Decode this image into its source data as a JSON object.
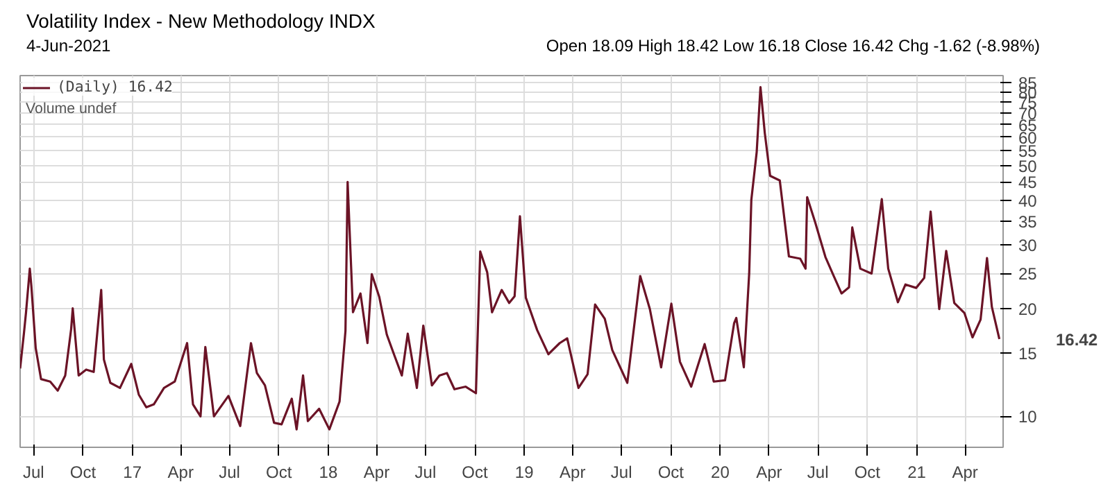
{
  "chart_data": {
    "type": "line",
    "title": "Volatility Index - New Methodology INDX",
    "subtitle": "4-Jun-2021",
    "annotations": [
      "Open 18.09 High 18.42 Low 16.18 Close 16.42 Chg -1.62 (-8.98%)",
      "Volume undef",
      "16.42"
    ],
    "x": [
      "2016-06-06",
      "2016-06-13",
      "2016-06-17",
      "2016-06-24",
      "2016-06-27",
      "2016-07-05",
      "2016-07-15",
      "2016-08-01",
      "2016-08-15",
      "2016-08-29",
      "2016-09-09",
      "2016-09-12",
      "2016-09-23",
      "2016-10-07",
      "2016-10-21",
      "2016-11-04",
      "2016-11-09",
      "2016-11-21",
      "2016-12-09",
      "2016-12-30",
      "2017-01-13",
      "2017-01-27",
      "2017-02-10",
      "2017-03-01",
      "2017-03-21",
      "2017-04-13",
      "2017-04-24",
      "2017-05-08",
      "2017-05-17",
      "2017-06-02",
      "2017-06-29",
      "2017-07-21",
      "2017-08-10",
      "2017-08-21",
      "2017-09-05",
      "2017-09-22",
      "2017-10-06",
      "2017-10-25",
      "2017-11-03",
      "2017-11-15",
      "2017-11-24",
      "2017-12-15",
      "2018-01-03",
      "2018-01-22",
      "2018-02-02",
      "2018-02-06",
      "2018-02-16",
      "2018-03-02",
      "2018-03-15",
      "2018-03-23",
      "2018-04-06",
      "2018-04-20",
      "2018-05-04",
      "2018-05-18",
      "2018-05-29",
      "2018-06-15",
      "2018-06-27",
      "2018-07-13",
      "2018-07-27",
      "2018-08-10",
      "2018-08-24",
      "2018-09-14",
      "2018-10-03",
      "2018-10-11",
      "2018-10-24",
      "2018-11-02",
      "2018-11-20",
      "2018-12-04",
      "2018-12-14",
      "2018-12-24",
      "2019-01-04",
      "2019-01-25",
      "2019-02-15",
      "2019-03-08",
      "2019-03-22",
      "2019-04-12",
      "2019-04-29",
      "2019-05-13",
      "2019-05-31",
      "2019-06-14",
      "2019-07-12",
      "2019-08-05",
      "2019-08-23",
      "2019-09-13",
      "2019-10-02",
      "2019-10-18",
      "2019-11-08",
      "2019-12-03",
      "2019-12-20",
      "2020-01-10",
      "2020-01-27",
      "2020-01-31",
      "2020-02-14",
      "2020-02-24",
      "2020-02-28",
      "2020-03-09",
      "2020-03-16",
      "2020-03-24",
      "2020-04-03",
      "2020-04-21",
      "2020-05-08",
      "2020-05-29",
      "2020-06-08",
      "2020-06-11",
      "2020-06-26",
      "2020-07-15",
      "2020-07-31",
      "2020-08-14",
      "2020-08-28",
      "2020-09-03",
      "2020-09-18",
      "2020-10-09",
      "2020-10-28",
      "2020-11-09",
      "2020-11-27",
      "2020-12-11",
      "2020-12-31",
      "2021-01-15",
      "2021-01-27",
      "2021-02-12",
      "2021-02-25",
      "2021-03-12",
      "2021-03-31",
      "2021-04-15",
      "2021-04-30",
      "2021-05-12",
      "2021-05-21",
      "2021-06-04"
    ],
    "series": [
      {
        "name": "(Daily) 16.42",
        "color": "#6b1326",
        "values": [
          13.6,
          17,
          19.5,
          25.8,
          23,
          15.5,
          12.7,
          12.5,
          11.8,
          13,
          17.5,
          20,
          13,
          13.5,
          13.3,
          22.5,
          14.4,
          12.4,
          12,
          14,
          11.5,
          10.6,
          10.8,
          12,
          12.5,
          16,
          10.8,
          10,
          15.6,
          10,
          11.4,
          9.4,
          16,
          13.2,
          12.2,
          9.6,
          9.5,
          11.2,
          9.2,
          13,
          9.7,
          10.5,
          9.2,
          11,
          17.3,
          45,
          19.5,
          22,
          16,
          24.9,
          21.5,
          16.9,
          14.8,
          13,
          17,
          12,
          17.9,
          12.2,
          13,
          13.2,
          11.9,
          12.1,
          11.6,
          28.8,
          25.2,
          19.5,
          22.5,
          20.7,
          21.6,
          36.1,
          21.4,
          17.4,
          14.9,
          16,
          16.5,
          12,
          13.1,
          20.5,
          18.7,
          15.3,
          12.4,
          24.6,
          19.9,
          13.7,
          20.6,
          14.2,
          12.1,
          15.9,
          12.5,
          12.6,
          18.2,
          18.8,
          13.7,
          25,
          40.1,
          54.5,
          82.7,
          61.7,
          46.8,
          45.4,
          27.9,
          27.5,
          25.8,
          40.8,
          34.7,
          27.8,
          24.5,
          22,
          22.9,
          33.6,
          25.8,
          25,
          40.3,
          25.8,
          20.8,
          23.3,
          22.8,
          24.3,
          37.2,
          19.9,
          28.9,
          20.7,
          19.4,
          16.6,
          18.6,
          27.6,
          20.2,
          16.42
        ]
      }
    ],
    "xlim": [
      "2016-06-06",
      "2021-06-11"
    ],
    "xticks": [
      {
        "value": "2016-07-01",
        "label": "Jul"
      },
      {
        "value": "2016-10-01",
        "label": "Oct"
      },
      {
        "value": "2017-01-01",
        "label": "17"
      },
      {
        "value": "2017-04-01",
        "label": "Apr"
      },
      {
        "value": "2017-07-01",
        "label": "Jul"
      },
      {
        "value": "2017-10-01",
        "label": "Oct"
      },
      {
        "value": "2018-01-01",
        "label": "18"
      },
      {
        "value": "2018-04-01",
        "label": "Apr"
      },
      {
        "value": "2018-07-01",
        "label": "Jul"
      },
      {
        "value": "2018-10-01",
        "label": "Oct"
      },
      {
        "value": "2019-01-01",
        "label": "19"
      },
      {
        "value": "2019-04-01",
        "label": "Apr"
      },
      {
        "value": "2019-07-01",
        "label": "Jul"
      },
      {
        "value": "2019-10-01",
        "label": "Oct"
      },
      {
        "value": "2020-01-01",
        "label": "20"
      },
      {
        "value": "2020-04-01",
        "label": "Apr"
      },
      {
        "value": "2020-07-01",
        "label": "Jul"
      },
      {
        "value": "2020-10-01",
        "label": "Oct"
      },
      {
        "value": "2021-01-01",
        "label": "21"
      },
      {
        "value": "2021-04-01",
        "label": "Apr"
      }
    ],
    "ylim": [
      8.2,
      89
    ],
    "yticks": [
      10,
      15,
      20,
      25,
      30,
      35,
      40,
      45,
      50,
      55,
      60,
      65,
      70,
      75,
      80,
      85
    ],
    "log": "y",
    "grid": true,
    "legend": "top left",
    "marker": "none",
    "line_style": "solid"
  }
}
